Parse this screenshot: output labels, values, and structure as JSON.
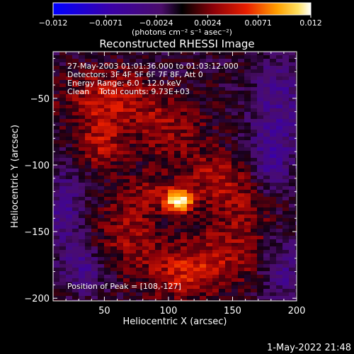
{
  "chart_data": {
    "type": "heatmap",
    "title": "Reconstructed RHESSI Image",
    "xlabel": "Heliocentric X (arcsec)",
    "ylabel": "Heliocentric Y (arcsec)",
    "xlim": [
      10,
      200
    ],
    "ylim": [
      -202,
      -15
    ],
    "x_ticks": [
      50,
      100,
      150,
      200
    ],
    "x_tick_labels": [
      "50",
      "100",
      "150",
      "200"
    ],
    "y_ticks": [
      -50,
      -100,
      -150,
      -200
    ],
    "y_tick_labels": [
      "−50",
      "−100",
      "−150",
      "−200"
    ],
    "colorbar": {
      "range": [
        -0.012,
        0.012
      ],
      "ticks": [
        -0.012,
        -0.0071,
        -0.0024,
        0.0024,
        0.0071,
        0.012
      ],
      "tick_labels": [
        "−0.012",
        "−0.0071",
        "−0.0024",
        "0.0024",
        "0.0071",
        "0.012"
      ],
      "unit_label": "(photons cm⁻² s⁻¹ asec⁻²)"
    },
    "annotations": {
      "time_range": "27-May-2003 01:01:36.000 to 01:03:12.000",
      "detectors": "Detectors: 3F 4F 5F 6F 7F 8F, Att 0",
      "energy": "Energy Range: 6.0 - 12.0 keV",
      "clean": "Clean    Total counts: 9.73E+03",
      "peak": "Position of Peak = [108,-127]"
    },
    "peak": {
      "x": 108,
      "y": -127
    }
  },
  "footer": {
    "date": "1-May-2022 21:48"
  }
}
